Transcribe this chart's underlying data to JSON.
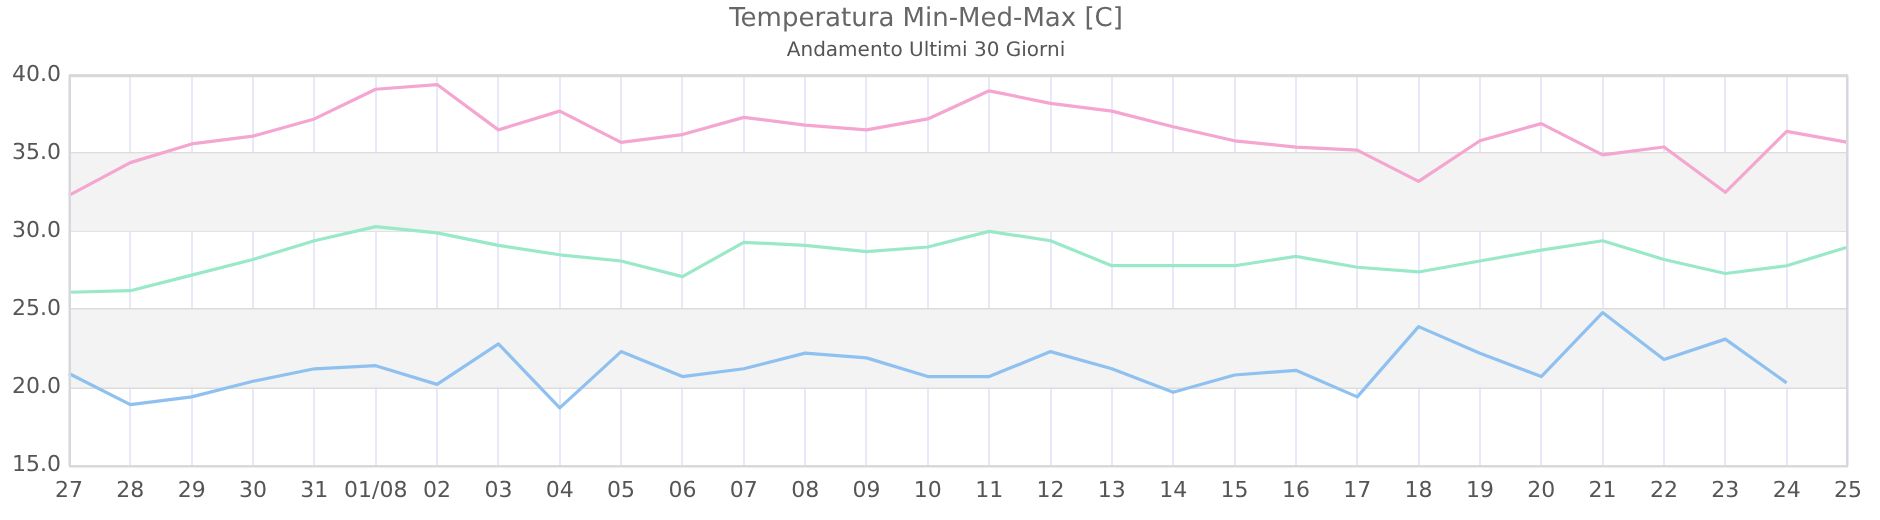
{
  "chart_data": {
    "type": "line",
    "title": "Temperatura Min-Med-Max [C]",
    "subtitle": "Andamento Ultimi 30 Giorni",
    "categories": [
      "27",
      "28",
      "29",
      "30",
      "31",
      "01/08",
      "02",
      "03",
      "04",
      "05",
      "06",
      "07",
      "08",
      "09",
      "10",
      "11",
      "12",
      "13",
      "14",
      "15",
      "16",
      "17",
      "18",
      "19",
      "20",
      "21",
      "22",
      "23",
      "24",
      "25"
    ],
    "series": [
      {
        "color": "#f4a6d0",
        "values": [
          32.3,
          34.4,
          35.6,
          36.1,
          37.2,
          39.1,
          39.4,
          36.5,
          37.7,
          35.7,
          36.2,
          37.3,
          36.8,
          36.5,
          37.2,
          39.0,
          38.2,
          37.7,
          36.7,
          35.8,
          35.4,
          35.2,
          33.2,
          35.8,
          36.9,
          34.9,
          35.4,
          32.5,
          36.4,
          35.7
        ]
      },
      {
        "color": "#99e9c9",
        "values": [
          26.1,
          26.2,
          27.2,
          28.2,
          29.4,
          30.3,
          29.9,
          29.1,
          28.5,
          28.1,
          27.1,
          29.3,
          29.1,
          28.7,
          29.0,
          30.0,
          29.4,
          27.8,
          27.8,
          27.8,
          28.4,
          27.7,
          27.4,
          28.1,
          28.8,
          29.4,
          28.2,
          27.3,
          27.8,
          29.0
        ]
      },
      {
        "color": "#8fc1f0",
        "values": [
          20.9,
          18.9,
          19.4,
          20.4,
          21.2,
          21.4,
          20.2,
          22.8,
          18.7,
          22.3,
          20.7,
          21.2,
          22.2,
          21.9,
          20.7,
          20.7,
          22.3,
          21.2,
          19.7,
          20.8,
          21.1,
          19.4,
          23.9,
          22.2,
          20.7,
          24.8,
          21.8,
          23.1,
          20.3,
          null
        ]
      }
    ],
    "ylim": [
      15,
      40
    ],
    "yticks": [
      {
        "value": 15,
        "label": "15.0"
      },
      {
        "value": 20,
        "label": "20.0"
      },
      {
        "value": 25,
        "label": "25.0"
      },
      {
        "value": 30,
        "label": "30.0"
      },
      {
        "value": 35,
        "label": "35.0"
      },
      {
        "value": 40,
        "label": "40.0"
      }
    ],
    "bands": [
      {
        "axis": "y",
        "from": 20,
        "to": 25,
        "color": "#f3f3f3"
      },
      {
        "axis": "y",
        "from": 30,
        "to": 35,
        "color": "#f3f3f3"
      }
    ],
    "grid": true,
    "legend": false,
    "marker": "none",
    "line_style": "solid"
  }
}
